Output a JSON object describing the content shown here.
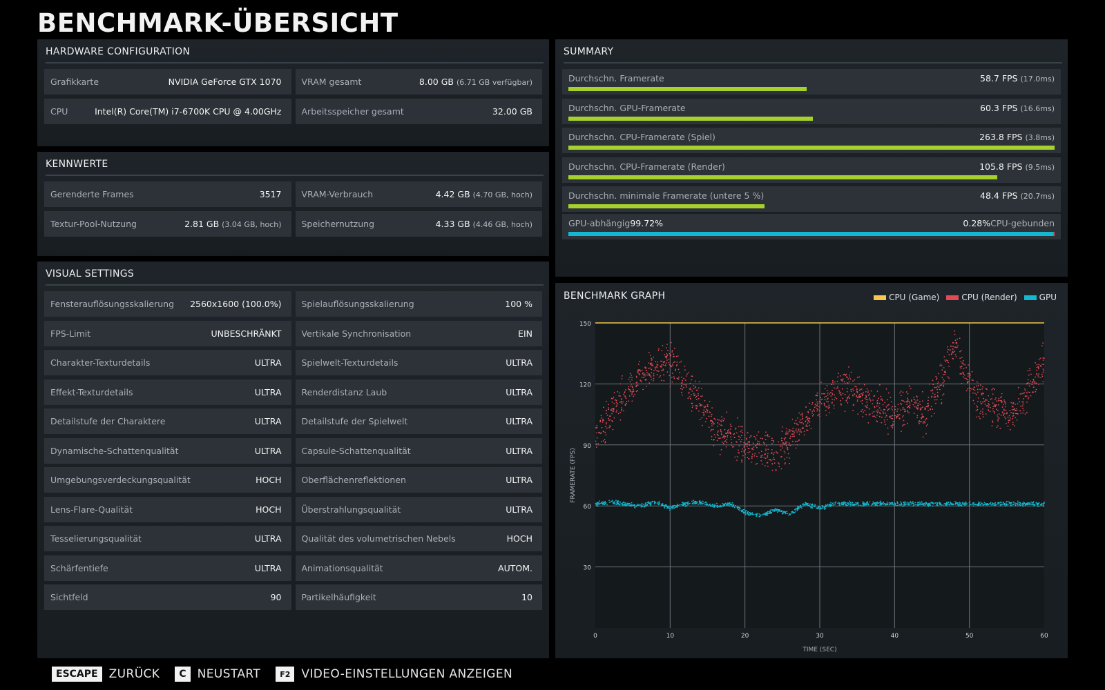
{
  "title": "BENCHMARK-ÜBERSICHT",
  "hardware": {
    "heading": "HARDWARE CONFIGURATION",
    "left": [
      {
        "label": "Grafikkarte",
        "value": "NVIDIA GeForce GTX 1070",
        "sub": ""
      },
      {
        "label": "CPU",
        "value": "Intel(R) Core(TM) i7-6700K CPU @ 4.00GHz",
        "sub": ""
      }
    ],
    "right": [
      {
        "label": "VRAM gesamt",
        "value": "8.00 GB",
        "sub": "(6.71 GB verfügbar)"
      },
      {
        "label": "Arbeitsspeicher gesamt",
        "value": "32.00 GB",
        "sub": ""
      }
    ]
  },
  "kennwerte": {
    "heading": "KENNWERTE",
    "left": [
      {
        "label": "Gerenderte Frames",
        "value": "3517",
        "sub": ""
      },
      {
        "label": "Textur-Pool-Nutzung",
        "value": "2.81 GB",
        "sub": "(3.04 GB, hoch)"
      }
    ],
    "right": [
      {
        "label": "VRAM-Verbrauch",
        "value": "4.42 GB",
        "sub": "(4.70 GB, hoch)"
      },
      {
        "label": "Speichernutzung",
        "value": "4.33 GB",
        "sub": "(4.46 GB, hoch)"
      }
    ]
  },
  "visual": {
    "heading": "VISUAL SETTINGS",
    "left": [
      {
        "label": "Fensterauflösungsskalierung",
        "value": "2560x1600 (100.0%)"
      },
      {
        "label": "FPS-Limit",
        "value": "UNBESCHRÄNKT"
      },
      {
        "label": "Charakter-Texturdetails",
        "value": "ULTRA"
      },
      {
        "label": "Effekt-Texturdetails",
        "value": "ULTRA"
      },
      {
        "label": "Detailstufe der Charaktere",
        "value": "ULTRA"
      },
      {
        "label": "Dynamische-Schattenqualität",
        "value": "ULTRA"
      },
      {
        "label": "Umgebungsverdeckungsqualität",
        "value": "HOCH"
      },
      {
        "label": "Lens-Flare-Qualität",
        "value": "HOCH"
      },
      {
        "label": "Tesselierungsqualität",
        "value": "ULTRA"
      },
      {
        "label": "Schärfentiefe",
        "value": "ULTRA"
      },
      {
        "label": "Sichtfeld",
        "value": "90"
      }
    ],
    "right": [
      {
        "label": "Spielauflösungsskalierung",
        "value": "100 %"
      },
      {
        "label": "Vertikale Synchronisation",
        "value": "EIN"
      },
      {
        "label": "Spielwelt-Texturdetails",
        "value": "ULTRA"
      },
      {
        "label": "Renderdistanz Laub",
        "value": "ULTRA"
      },
      {
        "label": "Detailstufe der Spielwelt",
        "value": "ULTRA"
      },
      {
        "label": "Capsule-Schattenqualität",
        "value": "ULTRA"
      },
      {
        "label": "Oberflächenreflektionen",
        "value": "ULTRA"
      },
      {
        "label": "Überstrahlungsqualität",
        "value": "ULTRA"
      },
      {
        "label": "Qualität des volumetrischen Nebels",
        "value": "HOCH"
      },
      {
        "label": "Animationsqualität",
        "value": "AUTOM."
      },
      {
        "label": "Partikelhäufigkeit",
        "value": "10"
      }
    ]
  },
  "summary": {
    "heading": "SUMMARY",
    "rows": [
      {
        "label": "Durchschn. Framerate",
        "value": "58.7 FPS",
        "sub": "(17.0ms)",
        "fraction": 0.49
      },
      {
        "label": "Durchschn. GPU-Framerate",
        "value": "60.3 FPS",
        "sub": "(16.6ms)",
        "fraction": 0.503
      },
      {
        "label": "Durchschn. CPU-Framerate (Spiel)",
        "value": "263.8 FPS",
        "sub": "(3.8ms)",
        "fraction": 1.0
      },
      {
        "label": "Durchschn. CPU-Framerate (Render)",
        "value": "105.8 FPS",
        "sub": "(9.5ms)",
        "fraction": 0.882
      },
      {
        "label": "Durchschn. minimale Framerate (untere 5 %)",
        "value": "48.4 FPS",
        "sub": "(20.7ms)",
        "fraction": 0.403
      }
    ],
    "bound": {
      "gpu_label": "GPU-abhängig",
      "gpu_value": "99.72%",
      "cpu_value": "0.28%",
      "cpu_label": "CPU-gebunden",
      "gpu_fraction": 0.9972
    }
  },
  "graph": {
    "heading": "BENCHMARK GRAPH",
    "legend": [
      {
        "label": "CPU (Game)",
        "color": "#f5c84c"
      },
      {
        "label": "CPU (Render)",
        "color": "#e04a55"
      },
      {
        "label": "GPU",
        "color": "#13b8d0"
      }
    ]
  },
  "chart_data": {
    "type": "scatter",
    "title": "BENCHMARK GRAPH",
    "xlabel": "TIME (SEC)",
    "ylabel": "FRAMERATE (FPS)",
    "xlim": [
      0,
      60
    ],
    "ylim": [
      0,
      150
    ],
    "xticks": [
      0,
      10,
      20,
      30,
      40,
      50,
      60
    ],
    "yticks": [
      30,
      60,
      90,
      120,
      150
    ],
    "grid": true,
    "legend_position": "top-right",
    "series": [
      {
        "name": "CPU (Game)",
        "color": "#f5c84c",
        "x": [
          0,
          10,
          20,
          30,
          40,
          45,
          50,
          60
        ],
        "y": [
          150,
          150,
          150,
          150,
          150,
          150,
          150,
          150
        ]
      },
      {
        "name": "CPU (Render)",
        "color": "#e04a55",
        "x": [
          0,
          2,
          4,
          6,
          8,
          10,
          12,
          14,
          16,
          18,
          20,
          22,
          24,
          26,
          28,
          30,
          32,
          34,
          36,
          38,
          40,
          42,
          44,
          46,
          48,
          50,
          52,
          54,
          56,
          58,
          60
        ],
        "y": [
          95,
          105,
          115,
          122,
          128,
          130,
          122,
          110,
          98,
          95,
          90,
          88,
          85,
          92,
          102,
          110,
          115,
          120,
          112,
          108,
          105,
          110,
          104,
          118,
          140,
          120,
          110,
          108,
          105,
          118,
          132
        ]
      },
      {
        "name": "GPU",
        "color": "#13b8d0",
        "x": [
          0,
          2,
          4,
          6,
          8,
          10,
          12,
          14,
          16,
          18,
          20,
          22,
          24,
          26,
          28,
          30,
          32,
          34,
          36,
          38,
          40,
          42,
          44,
          46,
          48,
          50,
          52,
          54,
          56,
          58,
          60
        ],
        "y": [
          61,
          62,
          61,
          60,
          62,
          59,
          61,
          62,
          60,
          61,
          57,
          55,
          58,
          56,
          61,
          59,
          61,
          61,
          61,
          61,
          61,
          61,
          61,
          61,
          61,
          61,
          61,
          61,
          61,
          61,
          61
        ]
      }
    ]
  },
  "footer": [
    {
      "key": "ESCAPE",
      "label": "ZURÜCK"
    },
    {
      "key": "C",
      "label": "NEUSTART"
    },
    {
      "key": "F2",
      "label": "VIDEO-EINSTELLUNGEN ANZEIGEN"
    }
  ]
}
